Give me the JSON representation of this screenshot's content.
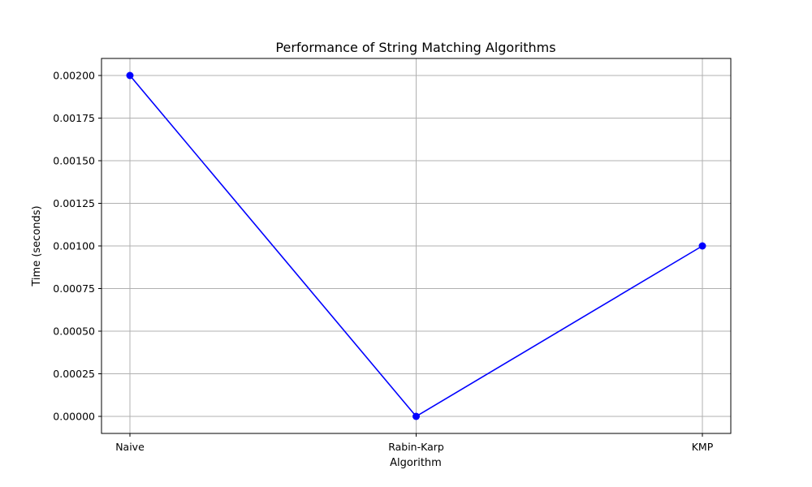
{
  "chart_data": {
    "type": "line",
    "title": "Performance of String Matching Algorithms",
    "xlabel": "Algorithm",
    "ylabel": "Time (seconds)",
    "categories": [
      "Naive",
      "Rabin-Karp",
      "KMP"
    ],
    "series": [
      {
        "values": [
          0.002,
          0.0,
          0.001
        ],
        "color": "#0000ff",
        "marker": "circle"
      }
    ],
    "ylim": [
      -0.0001,
      0.0021
    ],
    "yticks": [
      "0.00000",
      "0.00025",
      "0.00050",
      "0.00075",
      "0.00100",
      "0.00125",
      "0.00150",
      "0.00175",
      "0.00200"
    ],
    "ytick_values": [
      0.0,
      0.00025,
      0.0005,
      0.00075,
      0.001,
      0.00125,
      0.0015,
      0.00175,
      0.002
    ],
    "grid": true,
    "legend": "none",
    "colors": {
      "grid": "#b0b0b0",
      "axes": "#000000",
      "line": "#0000ff"
    }
  }
}
